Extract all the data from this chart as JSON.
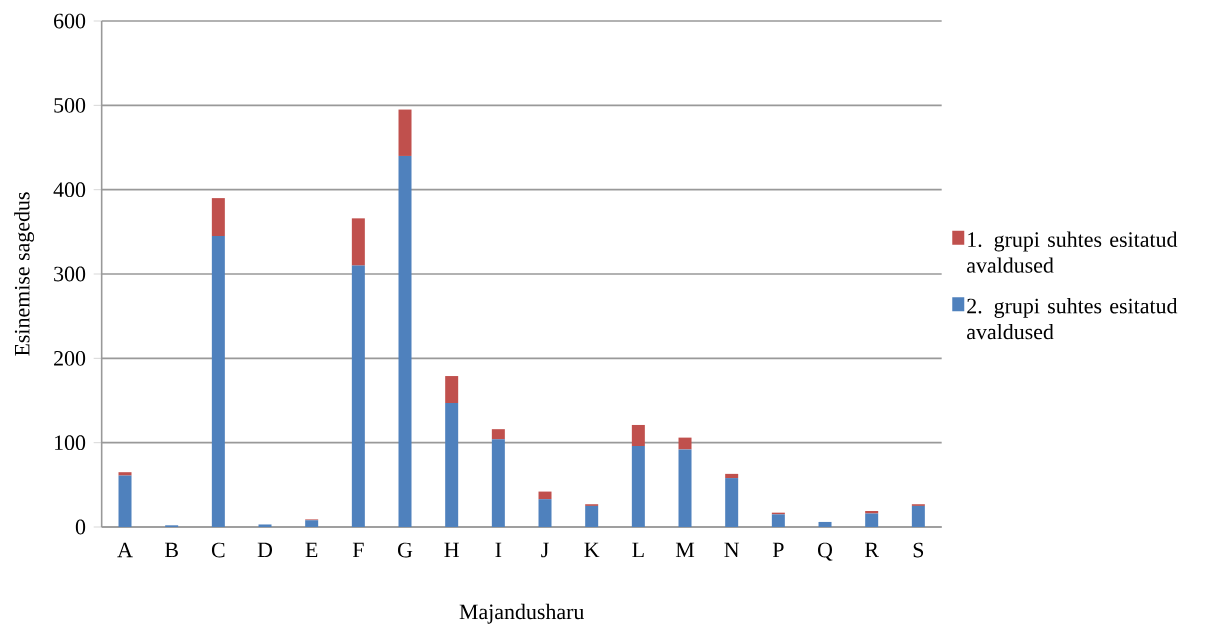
{
  "chart_data": {
    "type": "bar",
    "stacked": true,
    "xlabel": "Majandusharu",
    "ylabel": "Esinemise sagedus",
    "categories": [
      "A",
      "B",
      "C",
      "D",
      "E",
      "F",
      "G",
      "H",
      "I",
      "J",
      "K",
      "L",
      "M",
      "N",
      "P",
      "Q",
      "R",
      "S"
    ],
    "series": [
      {
        "name": "2. grupi suhtes esitatud avaldused",
        "color": "#4f81bd",
        "values": [
          61,
          2,
          345,
          3,
          8,
          310,
          440,
          147,
          104,
          33,
          25,
          96,
          92,
          58,
          15,
          6,
          16,
          25
        ]
      },
      {
        "name": "1. grupi suhtes esitatud avaldused",
        "color": "#c0504d",
        "values": [
          4,
          0,
          45,
          0,
          1,
          56,
          55,
          32,
          12,
          9,
          2,
          25,
          14,
          5,
          2,
          0,
          3,
          2
        ]
      }
    ],
    "ylim": [
      0,
      600
    ],
    "yticks": [
      0,
      100,
      200,
      300,
      400,
      500,
      600
    ],
    "grid": "y",
    "legend": "right"
  }
}
